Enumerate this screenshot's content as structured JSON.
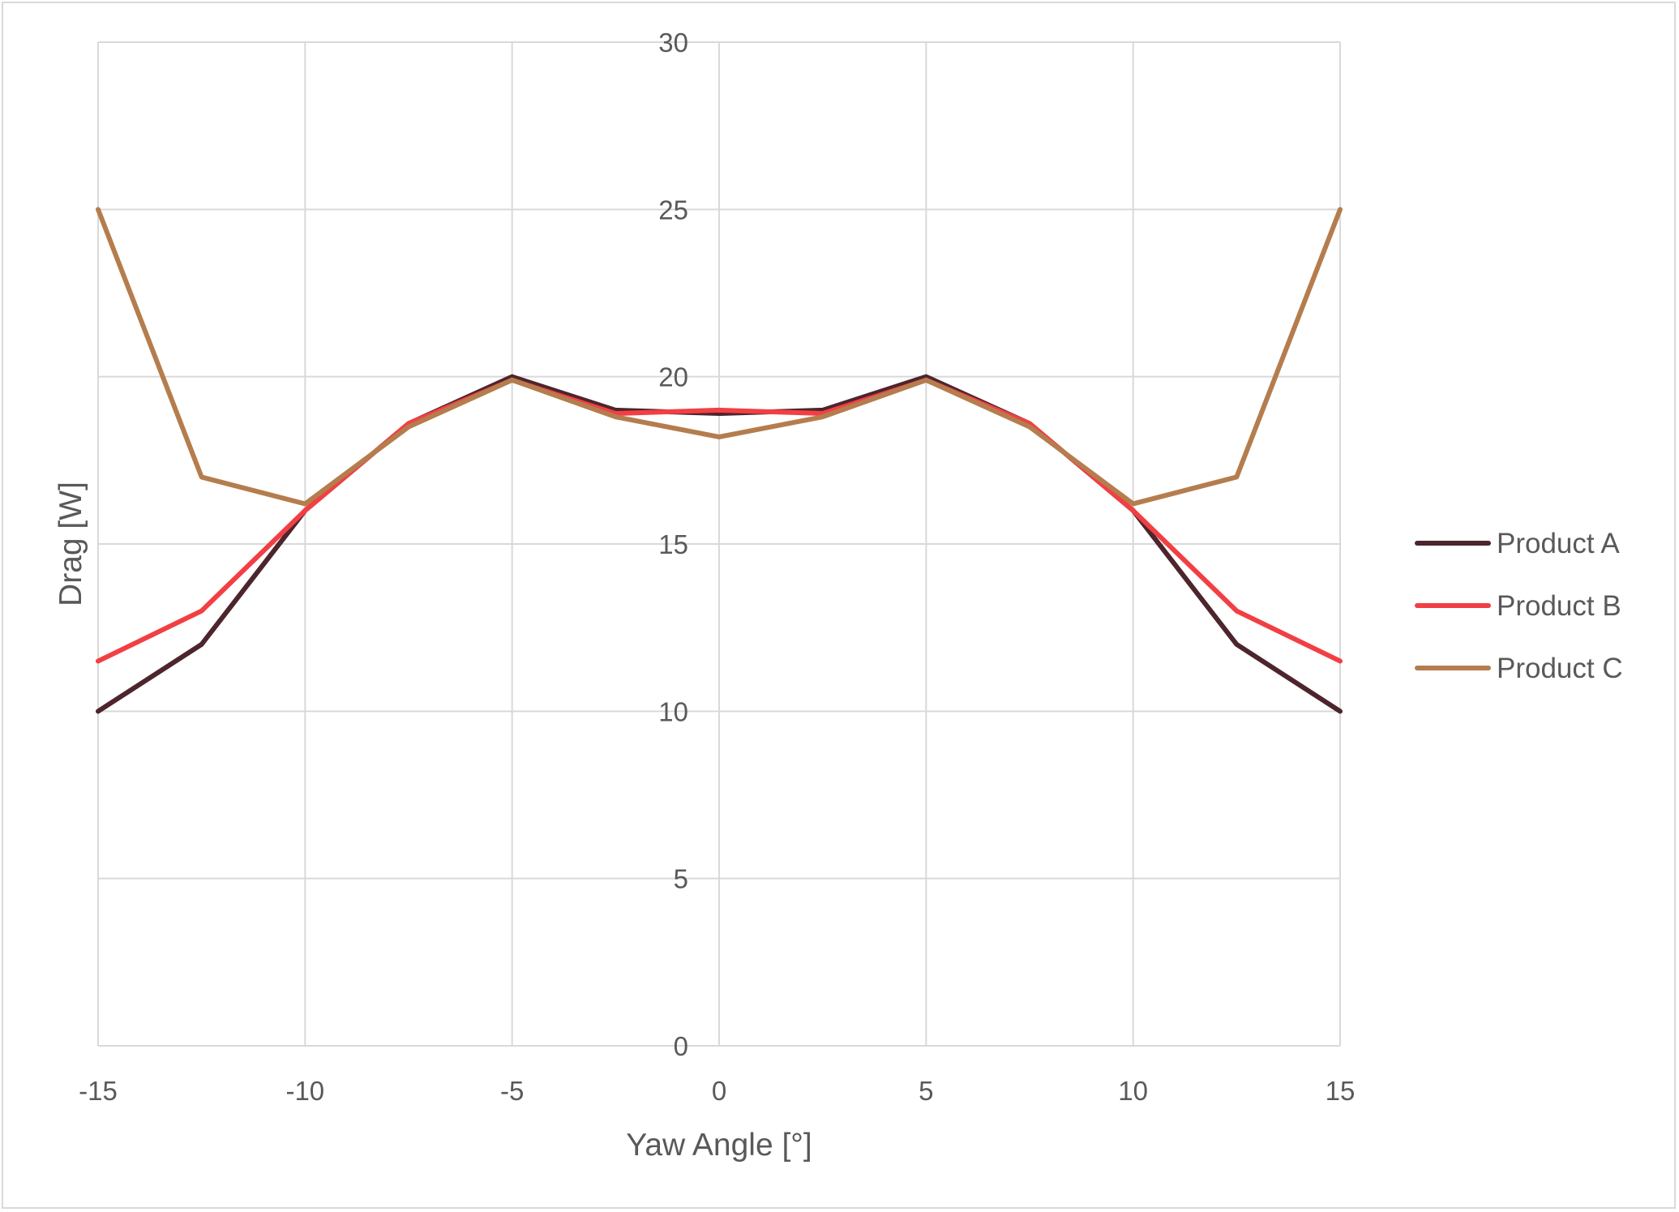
{
  "chart_data": {
    "type": "line",
    "x": [
      -15,
      -12.5,
      -10,
      -7.5,
      -5,
      -2.5,
      0,
      2.5,
      5,
      7.5,
      10,
      12.5,
      15
    ],
    "series": [
      {
        "name": "Product A",
        "color": "#4d252c",
        "values": [
          10,
          12,
          16,
          18.6,
          20,
          19,
          18.9,
          19,
          20,
          18.6,
          16,
          12,
          10
        ]
      },
      {
        "name": "Product B",
        "color": "#f23f44",
        "values": [
          11.5,
          13,
          16,
          18.6,
          19.9,
          18.9,
          19,
          18.9,
          19.9,
          18.6,
          16,
          13,
          11.5
        ]
      },
      {
        "name": "Product C",
        "color": "#b57d4e",
        "values": [
          25,
          17,
          16.2,
          18.5,
          19.9,
          18.8,
          18.2,
          18.8,
          19.9,
          18.5,
          16.2,
          17,
          25
        ]
      }
    ],
    "xlabel": "Yaw Angle [°]",
    "ylabel": "Drag [W]",
    "xlim": [
      -15,
      15
    ],
    "ylim": [
      0,
      30
    ],
    "xticks": [
      -15,
      -10,
      -5,
      0,
      5,
      10,
      15
    ],
    "yticks": [
      0,
      5,
      10,
      15,
      20,
      25,
      30
    ],
    "x_gridlines": [
      -15,
      -10,
      -5,
      0,
      5,
      10,
      15
    ],
    "grid": true,
    "legend_position": "right",
    "gridline_color": "#d9d9d9",
    "text_color": "#595959"
  }
}
